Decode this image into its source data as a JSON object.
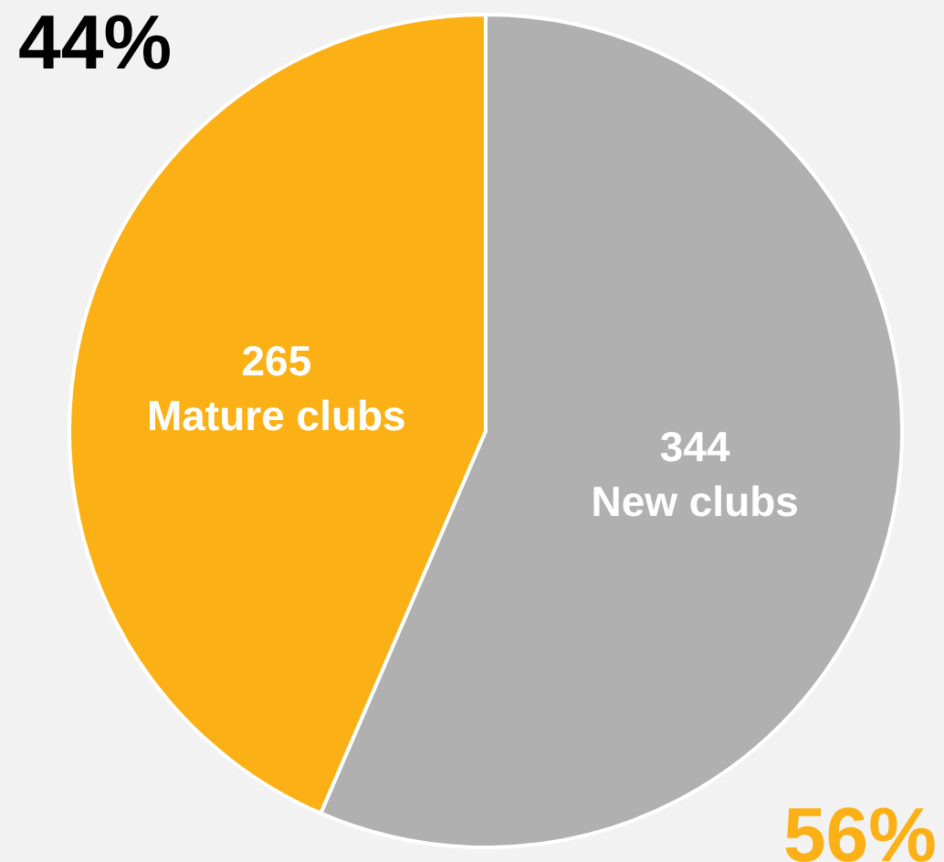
{
  "chart_data": {
    "type": "pie",
    "categories": [
      "New clubs",
      "Mature clubs"
    ],
    "values": [
      344,
      265
    ],
    "colors": [
      "#b0b0b0",
      "#fbb116"
    ],
    "data_labels": true,
    "legend": false,
    "annotations": [
      "44%",
      "56%"
    ]
  }
}
